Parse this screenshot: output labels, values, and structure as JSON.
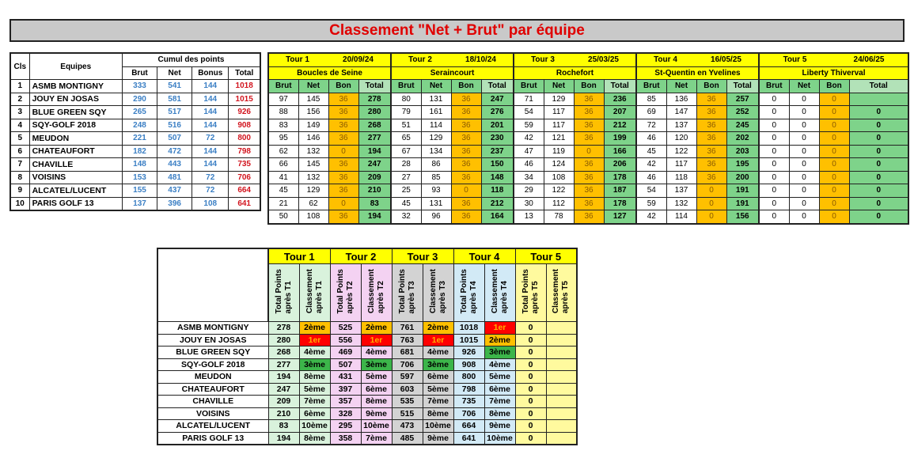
{
  "title": "Classement \"Net + Brut\" par équipe",
  "left_table": {
    "headers": {
      "cls": "Cls",
      "equipes": "Equipes",
      "cumul": "Cumul des points",
      "brut": "Brut",
      "net": "Net",
      "bonus": "Bonus",
      "total": "Total"
    },
    "rows": [
      {
        "cls": "1",
        "team": "ASMB MONTIGNY",
        "brut": "333",
        "net": "541",
        "bonus": "144",
        "total": "1018"
      },
      {
        "cls": "2",
        "team": "JOUY EN JOSAS",
        "brut": "290",
        "net": "581",
        "bonus": "144",
        "total": "1015"
      },
      {
        "cls": "3",
        "team": "BLUE GREEN SQY",
        "brut": "265",
        "net": "517",
        "bonus": "144",
        "total": "926"
      },
      {
        "cls": "4",
        "team": "SQY-GOLF 2018",
        "brut": "248",
        "net": "516",
        "bonus": "144",
        "total": "908"
      },
      {
        "cls": "5",
        "team": "MEUDON",
        "brut": "221",
        "net": "507",
        "bonus": "72",
        "total": "800"
      },
      {
        "cls": "6",
        "team": "CHATEAUFORT",
        "brut": "182",
        "net": "472",
        "bonus": "144",
        "total": "798"
      },
      {
        "cls": "7",
        "team": "CHAVILLE",
        "brut": "148",
        "net": "443",
        "bonus": "144",
        "total": "735"
      },
      {
        "cls": "8",
        "team": "VOISINS",
        "brut": "153",
        "net": "481",
        "bonus": "72",
        "total": "706"
      },
      {
        "cls": "9",
        "team": "ALCATEL/LUCENT",
        "brut": "155",
        "net": "437",
        "bonus": "72",
        "total": "664"
      },
      {
        "cls": "10",
        "team": "PARIS GOLF 13",
        "brut": "137",
        "net": "396",
        "bonus": "108",
        "total": "641"
      }
    ]
  },
  "tour_col_headers": [
    "Brut",
    "Net",
    "Bon",
    "Total"
  ],
  "tours": [
    {
      "name": "Tour 1",
      "date": "20/09/24",
      "course": "Boucles de Seine",
      "rows": [
        [
          "97",
          "145",
          "36",
          "278"
        ],
        [
          "88",
          "156",
          "36",
          "280"
        ],
        [
          "83",
          "149",
          "36",
          "268"
        ],
        [
          "95",
          "146",
          "36",
          "277"
        ],
        [
          "62",
          "132",
          "0",
          "194"
        ],
        [
          "66",
          "145",
          "36",
          "247"
        ],
        [
          "41",
          "132",
          "36",
          "209"
        ],
        [
          "45",
          "129",
          "36",
          "210"
        ],
        [
          "21",
          "62",
          "0",
          "83"
        ],
        [
          "50",
          "108",
          "36",
          "194"
        ]
      ]
    },
    {
      "name": "Tour 2",
      "date": "18/10/24",
      "course": "Seraincourt",
      "rows": [
        [
          "80",
          "131",
          "36",
          "247"
        ],
        [
          "79",
          "161",
          "36",
          "276"
        ],
        [
          "51",
          "114",
          "36",
          "201"
        ],
        [
          "65",
          "129",
          "36",
          "230"
        ],
        [
          "67",
          "134",
          "36",
          "237"
        ],
        [
          "28",
          "86",
          "36",
          "150"
        ],
        [
          "27",
          "85",
          "36",
          "148"
        ],
        [
          "25",
          "93",
          "0",
          "118"
        ],
        [
          "45",
          "131",
          "36",
          "212"
        ],
        [
          "32",
          "96",
          "36",
          "164"
        ]
      ]
    },
    {
      "name": "Tour 3",
      "date": "25/03/25",
      "course": "Rochefort",
      "rows": [
        [
          "71",
          "129",
          "36",
          "236"
        ],
        [
          "54",
          "117",
          "36",
          "207"
        ],
        [
          "59",
          "117",
          "36",
          "212"
        ],
        [
          "42",
          "121",
          "36",
          "199"
        ],
        [
          "47",
          "119",
          "0",
          "166"
        ],
        [
          "46",
          "124",
          "36",
          "206"
        ],
        [
          "34",
          "108",
          "36",
          "178"
        ],
        [
          "29",
          "122",
          "36",
          "187"
        ],
        [
          "30",
          "112",
          "36",
          "178"
        ],
        [
          "13",
          "78",
          "36",
          "127"
        ]
      ]
    },
    {
      "name": "Tour 4",
      "date": "16/05/25",
      "course": "St-Quentin en Yvelines",
      "rows": [
        [
          "85",
          "136",
          "36",
          "257"
        ],
        [
          "69",
          "147",
          "36",
          "252"
        ],
        [
          "72",
          "137",
          "36",
          "245"
        ],
        [
          "46",
          "120",
          "36",
          "202"
        ],
        [
          "45",
          "122",
          "36",
          "203"
        ],
        [
          "42",
          "117",
          "36",
          "195"
        ],
        [
          "46",
          "118",
          "36",
          "200"
        ],
        [
          "54",
          "137",
          "0",
          "191"
        ],
        [
          "59",
          "132",
          "0",
          "191"
        ],
        [
          "42",
          "114",
          "0",
          "156"
        ]
      ]
    },
    {
      "name": "Tour 5",
      "date": "24/06/25",
      "course": "Liberty Thiverval",
      "rows": [
        [
          "0",
          "0",
          "0",
          ""
        ],
        [
          "0",
          "0",
          "0",
          "0"
        ],
        [
          "0",
          "0",
          "0",
          "0"
        ],
        [
          "0",
          "0",
          "0",
          "0"
        ],
        [
          "0",
          "0",
          "0",
          "0"
        ],
        [
          "0",
          "0",
          "0",
          "0"
        ],
        [
          "0",
          "0",
          "0",
          "0"
        ],
        [
          "0",
          "0",
          "0",
          "0"
        ],
        [
          "0",
          "0",
          "0",
          "0"
        ],
        [
          "0",
          "0",
          "0",
          "0"
        ]
      ]
    }
  ],
  "progression": {
    "tours": [
      "Tour 1",
      "Tour 2",
      "Tour 3",
      "Tour 4",
      "Tour 5"
    ],
    "col_headers": [
      [
        "Total Points après T1",
        "Classement après T1"
      ],
      [
        "Total Points après T2",
        "Classement après T2"
      ],
      [
        "Total Points après T3",
        "Classement après T3"
      ],
      [
        "Total Points après T4",
        "Classement après T4"
      ],
      [
        "Total Points après T5",
        "Classement après T5"
      ]
    ],
    "rows": [
      {
        "team": "ASMB MONTIGNY",
        "cells": [
          "278",
          "2ème",
          "525",
          "2ème",
          "761",
          "2ème",
          "1018",
          "1er",
          "0",
          ""
        ]
      },
      {
        "team": "JOUY EN JOSAS",
        "cells": [
          "280",
          "1er",
          "556",
          "1er",
          "763",
          "1er",
          "1015",
          "2ème",
          "0",
          ""
        ]
      },
      {
        "team": "BLUE GREEN SQY",
        "cells": [
          "268",
          "4ème",
          "469",
          "4ème",
          "681",
          "4ème",
          "926",
          "3ème",
          "0",
          ""
        ]
      },
      {
        "team": "SQY-GOLF 2018",
        "cells": [
          "277",
          "3ème",
          "507",
          "3ème",
          "706",
          "3ème",
          "908",
          "4ème",
          "0",
          ""
        ]
      },
      {
        "team": "MEUDON",
        "cells": [
          "194",
          "8ème",
          "431",
          "5ème",
          "597",
          "6ème",
          "800",
          "5ème",
          "0",
          ""
        ]
      },
      {
        "team": "CHATEAUFORT",
        "cells": [
          "247",
          "5ème",
          "397",
          "6ème",
          "603",
          "5ème",
          "798",
          "6ème",
          "0",
          ""
        ]
      },
      {
        "team": "CHAVILLE",
        "cells": [
          "209",
          "7ème",
          "357",
          "8ème",
          "535",
          "7ème",
          "735",
          "7ème",
          "0",
          ""
        ]
      },
      {
        "team": "VOISINS",
        "cells": [
          "210",
          "6ème",
          "328",
          "9ème",
          "515",
          "8ème",
          "706",
          "8ème",
          "0",
          ""
        ]
      },
      {
        "team": "ALCATEL/LUCENT",
        "cells": [
          "83",
          "10ème",
          "295",
          "10ème",
          "473",
          "10ème",
          "664",
          "9ème",
          "0",
          ""
        ]
      },
      {
        "team": "PARIS GOLF 13",
        "cells": [
          "194",
          "8ème",
          "358",
          "7ème",
          "485",
          "9ème",
          "641",
          "10ème",
          "0",
          ""
        ]
      }
    ]
  },
  "colors": {
    "title_text": "#e00000",
    "header_yellow": "#ffff00",
    "header_green": "#7ed38a",
    "bonus_orange": "#ffc000",
    "rank_1": "#ff0000",
    "rank_2": "#ffc000",
    "rank_3": "#3cb54a",
    "tour1": "#d9f2dc",
    "tour2": "#f4d2f2",
    "tour3": "#d3d3d3",
    "tour4": "#d2eaf6",
    "tour5": "#fffa9e"
  }
}
